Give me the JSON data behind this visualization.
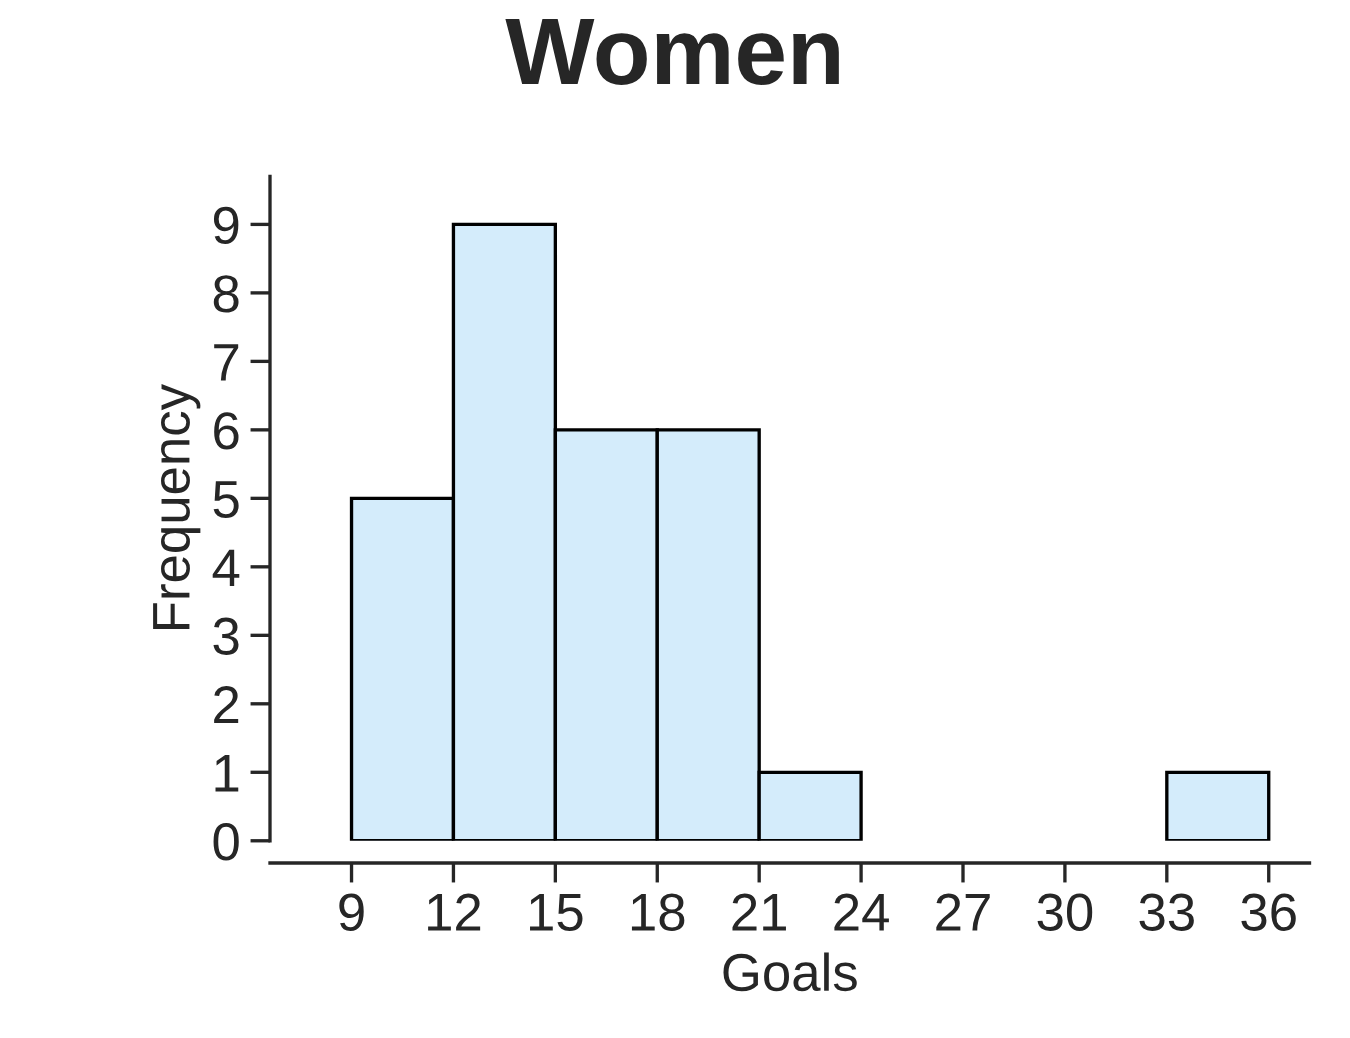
{
  "chart_data": {
    "type": "histogram",
    "title": "Women",
    "xlabel": "Goals",
    "ylabel": "Frequency",
    "bins": [
      9,
      12,
      15,
      18,
      21,
      24,
      27,
      30,
      33,
      36
    ],
    "values": [
      5,
      9,
      6,
      6,
      1,
      0,
      0,
      0,
      1
    ],
    "color": "#d4ecfb",
    "xlim": [
      6.6,
      37.2
    ],
    "xticks": [
      9,
      12,
      15,
      18,
      21,
      24,
      27,
      30,
      33,
      36
    ],
    "ylim": [
      0,
      9.7
    ],
    "yticks": [
      0,
      1,
      2,
      3,
      4,
      5,
      6,
      7,
      8,
      9
    ],
    "grid": false
  }
}
